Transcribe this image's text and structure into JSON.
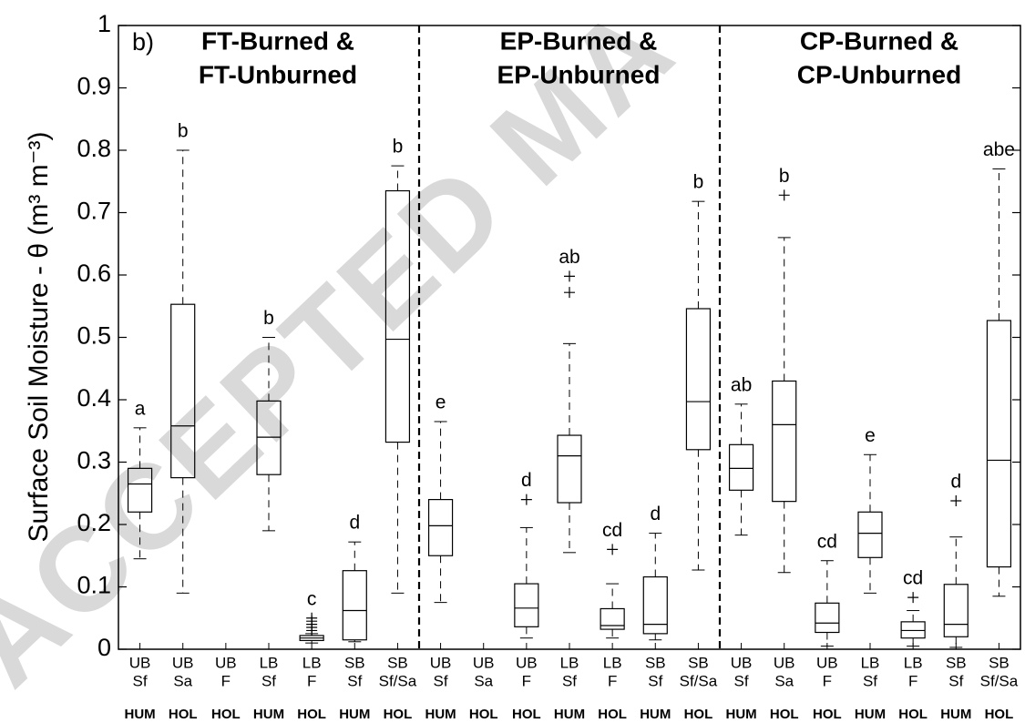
{
  "chart_data": {
    "type": "box",
    "panel_label": "b)",
    "watermark": "ACCEPTED MA",
    "y_label": "Surface Soil Moisture - θ (m³ m⁻³)",
    "groups": [
      [
        "FT-Burned &",
        "FT-Unburned"
      ],
      [
        "EP-Burned &",
        "EP-Unburned"
      ],
      [
        "CP-Burned &",
        "CP-Unburned"
      ]
    ],
    "categories": [
      [
        "UB",
        "Sf"
      ],
      [
        "UB",
        "Sa"
      ],
      [
        "UB",
        "F"
      ],
      [
        "LB",
        "Sf"
      ],
      [
        "LB",
        "F"
      ],
      [
        "SB",
        "Sf"
      ],
      [
        "SB",
        "Sf/Sa"
      ],
      [
        "UB",
        "Sf"
      ],
      [
        "UB",
        "Sa"
      ],
      [
        "UB",
        "F"
      ],
      [
        "LB",
        "Sf"
      ],
      [
        "LB",
        "F"
      ],
      [
        "SB",
        "Sf"
      ],
      [
        "SB",
        "Sf/Sa"
      ],
      [
        "UB",
        "Sf"
      ],
      [
        "UB",
        "Sa"
      ],
      [
        "UB",
        "F"
      ],
      [
        "LB",
        "Sf"
      ],
      [
        "LB",
        "F"
      ],
      [
        "SB",
        "Sf"
      ],
      [
        "SB",
        "Sf/Sa"
      ]
    ],
    "land_types": [
      "HUM",
      "HOL",
      "HOL",
      "HUM",
      "HOL",
      "HUM",
      "HOL",
      "HUM",
      "HOL",
      "HOL",
      "HUM",
      "HOL",
      "HUM",
      "HOL",
      "HUM",
      "HOL",
      "HOL",
      "HUM",
      "HOL",
      "HUM",
      "HOL"
    ],
    "letters": [
      "a",
      "b",
      null,
      "b",
      "c",
      "d",
      "b",
      "e",
      null,
      "d",
      "ab",
      "cd",
      "d",
      "b",
      "ab",
      "b",
      "cd",
      "e",
      "cd",
      "d",
      "abe"
    ],
    "boxes": [
      {
        "low": 0.145,
        "q1": 0.22,
        "median": 0.265,
        "q3": 0.29,
        "high": 0.355,
        "outliers": []
      },
      {
        "low": 0.09,
        "q1": 0.275,
        "median": 0.358,
        "q3": 0.553,
        "high": 0.8,
        "outliers": []
      },
      null,
      {
        "low": 0.19,
        "q1": 0.28,
        "median": 0.34,
        "q3": 0.398,
        "high": 0.5,
        "outliers": []
      },
      {
        "low": 0.01,
        "q1": 0.014,
        "median": 0.018,
        "q3": 0.022,
        "high": 0.025,
        "outliers": [
          0.03,
          0.035,
          0.04,
          0.045,
          0.05
        ]
      },
      {
        "low": 0.012,
        "q1": 0.015,
        "median": 0.062,
        "q3": 0.126,
        "high": 0.172,
        "outliers": []
      },
      {
        "low": 0.09,
        "q1": 0.332,
        "median": 0.497,
        "q3": 0.735,
        "high": 0.775,
        "outliers": []
      },
      {
        "low": 0.075,
        "q1": 0.15,
        "median": 0.198,
        "q3": 0.24,
        "high": 0.365,
        "outliers": []
      },
      null,
      {
        "low": 0.018,
        "q1": 0.036,
        "median": 0.066,
        "q3": 0.105,
        "high": 0.195,
        "outliers": [
          0.24
        ]
      },
      {
        "low": 0.155,
        "q1": 0.235,
        "median": 0.31,
        "q3": 0.343,
        "high": 0.49,
        "outliers": [
          0.572,
          0.598
        ]
      },
      {
        "low": 0.018,
        "q1": 0.032,
        "median": 0.038,
        "q3": 0.065,
        "high": 0.105,
        "outliers": [
          0.16
        ]
      },
      {
        "low": 0.015,
        "q1": 0.025,
        "median": 0.04,
        "q3": 0.116,
        "high": 0.186,
        "outliers": []
      },
      {
        "low": 0.127,
        "q1": 0.32,
        "median": 0.397,
        "q3": 0.546,
        "high": 0.718,
        "outliers": []
      },
      {
        "low": 0.183,
        "q1": 0.255,
        "median": 0.29,
        "q3": 0.328,
        "high": 0.393,
        "outliers": []
      },
      {
        "low": 0.123,
        "q1": 0.237,
        "median": 0.36,
        "q3": 0.43,
        "high": 0.66,
        "outliers": [
          0.728
        ]
      },
      {
        "low": 0.005,
        "q1": 0.027,
        "median": 0.042,
        "q3": 0.074,
        "high": 0.142,
        "outliers": []
      },
      {
        "low": 0.09,
        "q1": 0.147,
        "median": 0.186,
        "q3": 0.22,
        "high": 0.312,
        "outliers": []
      },
      {
        "low": 0.005,
        "q1": 0.018,
        "median": 0.03,
        "q3": 0.044,
        "high": 0.062,
        "outliers": [
          0.083
        ]
      },
      {
        "low": 0.003,
        "q1": 0.02,
        "median": 0.04,
        "q3": 0.104,
        "high": 0.18,
        "outliers": [
          0.238
        ]
      },
      {
        "low": 0.085,
        "q1": 0.132,
        "median": 0.303,
        "q3": 0.527,
        "high": 0.77,
        "outliers": []
      }
    ],
    "color": "#000000",
    "ylim": [
      0,
      1
    ],
    "yticks": [
      0,
      0.1,
      0.2,
      0.3,
      0.4,
      0.5,
      0.6,
      0.7,
      0.8,
      0.9,
      1
    ]
  }
}
